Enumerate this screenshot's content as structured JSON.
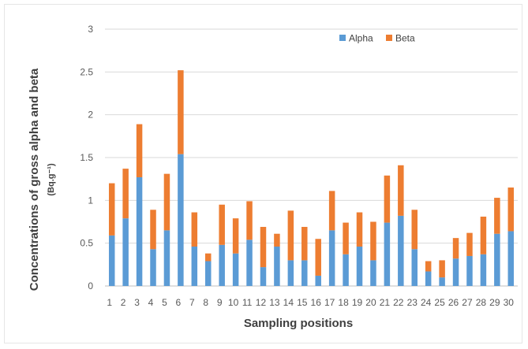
{
  "chart_data": {
    "type": "bar",
    "stacked": true,
    "xlabel": "Sampling positions",
    "ylabel": "Concentrations of gross alpha and beta",
    "ylabel_unit": "(Bq.g⁻¹)",
    "ylim": [
      0,
      3
    ],
    "yticks": [
      "0",
      "0.5",
      "1",
      "1.5",
      "2",
      "2.5",
      "3"
    ],
    "grid": true,
    "legend_position": "top-right",
    "categories": [
      "1",
      "2",
      "3",
      "4",
      "5",
      "6",
      "7",
      "8",
      "9",
      "10",
      "11",
      "12",
      "13",
      "14",
      "15",
      "16",
      "17",
      "18",
      "19",
      "20",
      "21",
      "22",
      "23",
      "24",
      "25",
      "26",
      "27",
      "28",
      "29",
      "30"
    ],
    "series": [
      {
        "name": "Alpha",
        "color": "#5b9bd5",
        "values": [
          0.59,
          0.79,
          1.27,
          0.43,
          0.65,
          1.54,
          0.46,
          0.29,
          0.48,
          0.38,
          0.54,
          0.22,
          0.46,
          0.3,
          0.3,
          0.12,
          0.65,
          0.37,
          0.46,
          0.3,
          0.74,
          0.82,
          0.43,
          0.17,
          0.1,
          0.32,
          0.35,
          0.37,
          0.61,
          0.64
        ]
      },
      {
        "name": "Beta",
        "color": "#ed7d31",
        "values": [
          0.61,
          0.58,
          0.62,
          0.46,
          0.66,
          0.98,
          0.4,
          0.09,
          0.47,
          0.41,
          0.45,
          0.47,
          0.15,
          0.58,
          0.39,
          0.43,
          0.46,
          0.37,
          0.4,
          0.45,
          0.55,
          0.59,
          0.46,
          0.12,
          0.2,
          0.24,
          0.27,
          0.44,
          0.42,
          0.51
        ]
      }
    ]
  }
}
